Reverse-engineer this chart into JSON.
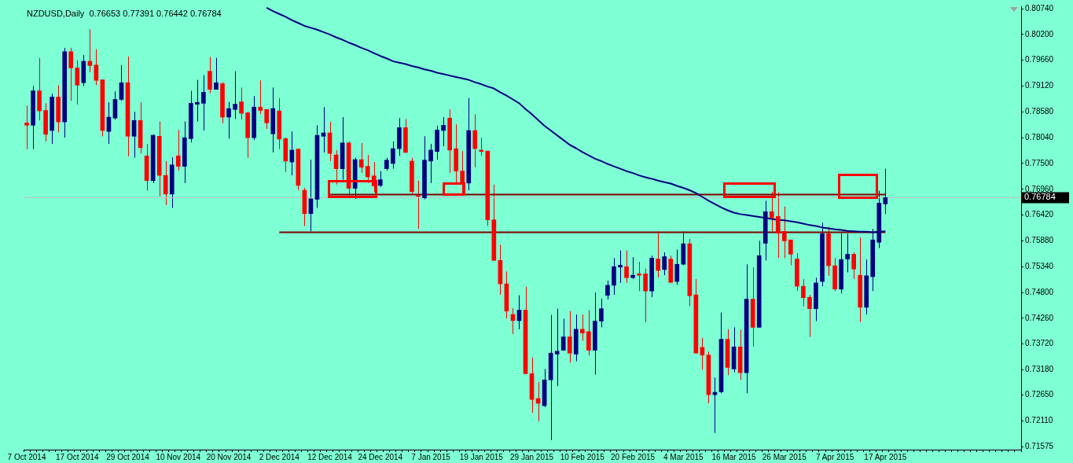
{
  "chart_data": {
    "type": "candlestick",
    "title": "NZDUSD,Daily  0.76653 0.77391 0.76442 0.76784",
    "categories": [
      "7 Oct 2014",
      null,
      null,
      null,
      null,
      null,
      null,
      null,
      "17 Oct 2014",
      null,
      null,
      null,
      null,
      null,
      null,
      null,
      "29 Oct 2014",
      null,
      null,
      null,
      null,
      null,
      null,
      null,
      "10 Nov 2014",
      null,
      null,
      null,
      null,
      null,
      null,
      null,
      "20 Nov 2014",
      null,
      null,
      null,
      null,
      null,
      null,
      null,
      "2 Dec 2014",
      null,
      null,
      null,
      null,
      null,
      null,
      null,
      "12 Dec 2014",
      null,
      null,
      null,
      null,
      null,
      null,
      null,
      "24 Dec 2014",
      null,
      null,
      null,
      null,
      null,
      null,
      null,
      "7 Jan 2015",
      null,
      null,
      null,
      null,
      null,
      null,
      null,
      "19 Jan 2015",
      null,
      null,
      null,
      null,
      null,
      null,
      null,
      "29 Jan 2015",
      null,
      null,
      null,
      null,
      null,
      null,
      null,
      "10 Feb 2015",
      null,
      null,
      null,
      null,
      null,
      null,
      null,
      "20 Feb 2015",
      null,
      null,
      null,
      null,
      null,
      null,
      null,
      "4 Mar 2015",
      null,
      null,
      null,
      null,
      null,
      null,
      null,
      "16 Mar 2015",
      null,
      null,
      null,
      null,
      null,
      null,
      null,
      "26 Mar 2015",
      null,
      null,
      null,
      null,
      null,
      null,
      null,
      "7 Apr 2015",
      null,
      null,
      null,
      null,
      null,
      null,
      null,
      "17 Apr 2015"
    ],
    "ohlc": [
      [
        0.7835,
        0.7871,
        0.778,
        0.783
      ],
      [
        0.783,
        0.7912,
        0.778,
        0.7902
      ],
      [
        0.7902,
        0.7971,
        0.784,
        0.786
      ],
      [
        0.7861,
        0.7876,
        0.7796,
        0.7811
      ],
      [
        0.7819,
        0.7896,
        0.7791,
        0.7889
      ],
      [
        0.7889,
        0.7914,
        0.7815,
        0.7837
      ],
      [
        0.7837,
        0.7992,
        0.7804,
        0.7984
      ],
      [
        0.7984,
        0.7992,
        0.7881,
        0.795
      ],
      [
        0.795,
        0.7966,
        0.7873,
        0.7914
      ],
      [
        0.7919,
        0.7977,
        0.7912,
        0.7964
      ],
      [
        0.7964,
        0.8031,
        0.7941,
        0.7955
      ],
      [
        0.7956,
        0.7989,
        0.7914,
        0.7924
      ],
      [
        0.7925,
        0.7925,
        0.7807,
        0.7819
      ],
      [
        0.7817,
        0.7878,
        0.7791,
        0.7847
      ],
      [
        0.7845,
        0.7901,
        0.7842,
        0.7884
      ],
      [
        0.7884,
        0.7956,
        0.7881,
        0.7919
      ],
      [
        0.7919,
        0.7974,
        0.7765,
        0.7807
      ],
      [
        0.7807,
        0.7858,
        0.7762,
        0.784
      ],
      [
        0.784,
        0.7878,
        0.7771,
        0.7783
      ],
      [
        0.7766,
        0.7791,
        0.7693,
        0.7714
      ],
      [
        0.7714,
        0.7811,
        0.7709,
        0.7809
      ],
      [
        0.7807,
        0.7838,
        0.7681,
        0.7725
      ],
      [
        0.7725,
        0.7755,
        0.7663,
        0.7686
      ],
      [
        0.7686,
        0.7763,
        0.7657,
        0.7747
      ],
      [
        0.7766,
        0.782,
        0.7735,
        0.7744
      ],
      [
        0.7744,
        0.7838,
        0.7709,
        0.7804
      ],
      [
        0.7802,
        0.7902,
        0.7794,
        0.7876
      ],
      [
        0.7874,
        0.7925,
        0.7838,
        0.7878
      ],
      [
        0.7876,
        0.7935,
        0.7819,
        0.7899
      ],
      [
        0.7943,
        0.7973,
        0.7897,
        0.7905
      ],
      [
        0.7905,
        0.7971,
        0.7905,
        0.7919
      ],
      [
        0.7917,
        0.792,
        0.7834,
        0.7847
      ],
      [
        0.7847,
        0.7879,
        0.7802,
        0.7865
      ],
      [
        0.7863,
        0.7943,
        0.7843,
        0.7874
      ],
      [
        0.7879,
        0.7909,
        0.7842,
        0.7855
      ],
      [
        0.7856,
        0.7858,
        0.7762,
        0.7804
      ],
      [
        0.7804,
        0.7891,
        0.7799,
        0.7868
      ],
      [
        0.7868,
        0.7924,
        0.7853,
        0.7861
      ],
      [
        0.7863,
        0.7863,
        0.7822,
        0.7835
      ],
      [
        0.7812,
        0.7909,
        0.7773,
        0.7865
      ],
      [
        0.786,
        0.7887,
        0.778,
        0.7801
      ],
      [
        0.7802,
        0.7804,
        0.7732,
        0.7755
      ],
      [
        0.7753,
        0.7817,
        0.7725,
        0.7778
      ],
      [
        0.778,
        0.7781,
        0.7694,
        0.7704
      ],
      [
        0.7694,
        0.7699,
        0.7619,
        0.7645
      ],
      [
        0.7645,
        0.7758,
        0.7608,
        0.7676
      ],
      [
        0.7675,
        0.783,
        0.7657,
        0.7809
      ],
      [
        0.7807,
        0.7868,
        0.7773,
        0.7814
      ],
      [
        0.7814,
        0.7837,
        0.7755,
        0.7771
      ],
      [
        0.7768,
        0.7778,
        0.7706,
        0.7739
      ],
      [
        0.7739,
        0.7847,
        0.7716,
        0.7793
      ],
      [
        0.7793,
        0.7796,
        0.7681,
        0.7698
      ],
      [
        0.7698,
        0.7762,
        0.7676,
        0.7758
      ],
      [
        0.7758,
        0.7793,
        0.773,
        0.7742
      ],
      [
        0.7744,
        0.7768,
        0.7709,
        0.7722
      ],
      [
        0.7724,
        0.7753,
        0.769,
        0.7703
      ],
      [
        0.7704,
        0.7734,
        0.7701,
        0.7716
      ],
      [
        0.7739,
        0.7762,
        0.7735,
        0.7757
      ],
      [
        0.775,
        0.7796,
        0.7739,
        0.7781
      ],
      [
        0.7781,
        0.7845,
        0.7766,
        0.7825
      ],
      [
        0.7825,
        0.7843,
        0.7773,
        0.7773
      ],
      [
        0.7755,
        0.7762,
        0.7685,
        0.7691
      ],
      [
        0.7683,
        0.7714,
        0.7613,
        0.7681
      ],
      [
        0.7678,
        0.7807,
        0.7675,
        0.7757
      ],
      [
        0.7755,
        0.7791,
        0.7709,
        0.7778
      ],
      [
        0.7775,
        0.7829,
        0.7758,
        0.782
      ],
      [
        0.7819,
        0.7847,
        0.7786,
        0.783
      ],
      [
        0.7845,
        0.7863,
        0.773,
        0.7778
      ],
      [
        0.7781,
        0.7832,
        0.7709,
        0.7734
      ],
      [
        0.7734,
        0.7776,
        0.7685,
        0.7709
      ],
      [
        0.7709,
        0.7887,
        0.7694,
        0.7819
      ],
      [
        0.7819,
        0.7853,
        0.7742,
        0.7781
      ],
      [
        0.7778,
        0.7804,
        0.7766,
        0.7775
      ],
      [
        0.7776,
        0.7776,
        0.7619,
        0.7632
      ],
      [
        0.7632,
        0.7706,
        0.7547,
        0.7547
      ],
      [
        0.7547,
        0.758,
        0.7475,
        0.7498
      ],
      [
        0.7498,
        0.7524,
        0.7426,
        0.7441
      ],
      [
        0.7434,
        0.7447,
        0.7393,
        0.7421
      ],
      [
        0.7421,
        0.7474,
        0.7403,
        0.7443
      ],
      [
        0.7443,
        0.7492,
        0.731,
        0.731
      ],
      [
        0.731,
        0.7344,
        0.7228,
        0.7256
      ],
      [
        0.7258,
        0.7292,
        0.721,
        0.7248
      ],
      [
        0.7243,
        0.732,
        0.724,
        0.7297
      ],
      [
        0.7297,
        0.7433,
        0.7171,
        0.7353
      ],
      [
        0.7351,
        0.7446,
        0.7284,
        0.7357
      ],
      [
        0.7359,
        0.7425,
        0.7359,
        0.7387
      ],
      [
        0.7387,
        0.7441,
        0.7333,
        0.7353
      ],
      [
        0.7351,
        0.7434,
        0.7336,
        0.7403
      ],
      [
        0.7403,
        0.7434,
        0.7379,
        0.7395
      ],
      [
        0.7398,
        0.7443,
        0.7348,
        0.7359
      ],
      [
        0.7359,
        0.748,
        0.7308,
        0.742
      ],
      [
        0.742,
        0.7467,
        0.7407,
        0.7446
      ],
      [
        0.7474,
        0.7505,
        0.7465,
        0.7495
      ],
      [
        0.7495,
        0.7552,
        0.7475,
        0.7534
      ],
      [
        0.7533,
        0.7568,
        0.75,
        0.7537
      ],
      [
        0.7534,
        0.7568,
        0.75,
        0.7511
      ],
      [
        0.7511,
        0.7554,
        0.7508,
        0.7516
      ],
      [
        0.7519,
        0.7544,
        0.7483,
        0.7516
      ],
      [
        0.7519,
        0.753,
        0.7418,
        0.7483
      ],
      [
        0.7483,
        0.7557,
        0.747,
        0.7552
      ],
      [
        0.755,
        0.7608,
        0.7511,
        0.7526
      ],
      [
        0.7528,
        0.7564,
        0.7516,
        0.7555
      ],
      [
        0.755,
        0.7557,
        0.75,
        0.7501
      ],
      [
        0.7503,
        0.757,
        0.7496,
        0.7539
      ],
      [
        0.7539,
        0.7608,
        0.7537,
        0.7582
      ],
      [
        0.7582,
        0.7592,
        0.7451,
        0.7473
      ],
      [
        0.7475,
        0.7508,
        0.7353,
        0.7353
      ],
      [
        0.7365,
        0.7385,
        0.7318,
        0.7349
      ],
      [
        0.7349,
        0.7356,
        0.7248,
        0.7266
      ],
      [
        0.7266,
        0.7302,
        0.7186,
        0.7271
      ],
      [
        0.7272,
        0.7438,
        0.7269,
        0.7382
      ],
      [
        0.7382,
        0.7403,
        0.7307,
        0.7323
      ],
      [
        0.732,
        0.7407,
        0.7313,
        0.7366
      ],
      [
        0.7366,
        0.7402,
        0.7297,
        0.7312
      ],
      [
        0.7312,
        0.7539,
        0.7269,
        0.7466
      ],
      [
        0.7466,
        0.7533,
        0.7367,
        0.7407
      ],
      [
        0.7407,
        0.7588,
        0.7407,
        0.7557
      ],
      [
        0.7583,
        0.7672,
        0.7547,
        0.7649
      ],
      [
        0.7649,
        0.7691,
        0.7608,
        0.7636
      ],
      [
        0.7639,
        0.769,
        0.7552,
        0.7604
      ],
      [
        0.7608,
        0.766,
        0.7552,
        0.7588
      ],
      [
        0.759,
        0.759,
        0.7537,
        0.756
      ],
      [
        0.755,
        0.7562,
        0.7483,
        0.7493
      ],
      [
        0.7493,
        0.7508,
        0.7451,
        0.7469
      ],
      [
        0.747,
        0.7475,
        0.7387,
        0.7446
      ],
      [
        0.7446,
        0.7511,
        0.742,
        0.75
      ],
      [
        0.7503,
        0.7626,
        0.7493,
        0.7603
      ],
      [
        0.7603,
        0.7617,
        0.7515,
        0.7536
      ],
      [
        0.7536,
        0.7552,
        0.7483,
        0.7487
      ],
      [
        0.7487,
        0.7604,
        0.7478,
        0.7549
      ],
      [
        0.755,
        0.7603,
        0.7522,
        0.756
      ],
      [
        0.756,
        0.7564,
        0.7508,
        0.7529
      ],
      [
        0.7516,
        0.7595,
        0.7418,
        0.7449
      ],
      [
        0.7449,
        0.7549,
        0.7434,
        0.7515
      ],
      [
        0.7513,
        0.7613,
        0.7483,
        0.759
      ],
      [
        0.7585,
        0.7693,
        0.7573,
        0.7667
      ],
      [
        0.76653,
        0.77391,
        0.76442,
        0.76784
      ]
    ],
    "colors": [
      "#ff0000",
      "#000080",
      "#ff0000",
      "#ff0000",
      "#000080",
      "#ff0000",
      "#000080",
      "#ff0000",
      "#ff0000",
      "#000080",
      "#ff0000",
      "#ff0000",
      "#ff0000",
      "#000080",
      "#000080",
      "#000080",
      "#ff0000",
      "#000080",
      "#ff0000",
      "#ff0000",
      "#000080",
      "#ff0000",
      "#ff0000",
      "#000080",
      "#ff0000",
      "#000080",
      "#000080",
      "#000080",
      "#000080",
      "#ff0000",
      "#000080",
      "#ff0000",
      "#000080",
      "#000080",
      "#ff0000",
      "#ff0000",
      "#000080",
      "#ff0000",
      "#ff0000",
      "#000080",
      "#ff0000",
      "#ff0000",
      "#000080",
      "#ff0000",
      "#ff0000",
      "#000080",
      "#000080",
      "#000080",
      "#ff0000",
      "#ff0000",
      "#000080",
      "#ff0000",
      "#000080",
      "#ff0000",
      "#ff0000",
      "#ff0000",
      "#000080",
      "#000080",
      "#000080",
      "#000080",
      "#ff0000",
      "#ff0000",
      "#ff0000",
      "#000080",
      "#000080",
      "#000080",
      "#000080",
      "#ff0000",
      "#ff0000",
      "#ff0000",
      "#000080",
      "#ff0000",
      "#ff0000",
      "#ff0000",
      "#ff0000",
      "#ff0000",
      "#ff0000",
      "#ff0000",
      "#000080",
      "#ff0000",
      "#ff0000",
      "#ff0000",
      "#000080",
      "#000080",
      "#000080",
      "#000080",
      "#ff0000",
      "#000080",
      "#ff0000",
      "#ff0000",
      "#000080",
      "#000080",
      "#000080",
      "#000080",
      "#000080",
      "#ff0000",
      "#000080",
      "#ff0000",
      "#ff0000",
      "#000080",
      "#ff0000",
      "#000080",
      "#ff0000",
      "#000080",
      "#000080",
      "#ff0000",
      "#ff0000",
      "#ff0000",
      "#ff0000",
      "#000080",
      "#000080",
      "#ff0000",
      "#000080",
      "#ff0000",
      "#000080",
      "#ff0000",
      "#000080",
      "#000080",
      "#ff0000",
      "#ff0000",
      "#ff0000",
      "#ff0000",
      "#ff0000",
      "#ff0000",
      "#ff0000",
      "#000080",
      "#000080",
      "#ff0000",
      "#ff0000",
      "#000080",
      "#000080",
      "#ff0000",
      "#ff0000",
      "#000080",
      "#000080",
      "#000080",
      "#000080"
    ],
    "series": [
      {
        "type": "line",
        "color": "#000080",
        "values": [
          null,
          null,
          null,
          null,
          null,
          null,
          null,
          null,
          null,
          null,
          null,
          null,
          null,
          null,
          null,
          null,
          null,
          null,
          null,
          null,
          null,
          null,
          null,
          null,
          null,
          null,
          null,
          null,
          null,
          null,
          null,
          null,
          null,
          null,
          null,
          null,
          null,
          null,
          0.8076,
          0.8069,
          0.8063,
          0.8057,
          0.805,
          0.8044,
          0.8038,
          0.8034,
          0.803,
          0.8025,
          0.802,
          0.8014,
          0.8009,
          0.8003,
          0.7998,
          0.7992,
          0.7987,
          0.7981,
          0.7975,
          0.797,
          0.7964,
          0.7961,
          0.7958,
          0.7954,
          0.7951,
          0.7947,
          0.7944,
          0.794,
          0.7937,
          0.7934,
          0.7931,
          0.7928,
          0.7925,
          0.792,
          0.7916,
          0.7911,
          0.7907,
          0.7899,
          0.7892,
          0.7884,
          0.7876,
          0.7864,
          0.7853,
          0.7841,
          0.7829,
          0.7819,
          0.7809,
          0.7799,
          0.7789,
          0.7782,
          0.7774,
          0.7767,
          0.776,
          0.7755,
          0.7749,
          0.7744,
          0.7739,
          0.7734,
          0.773,
          0.7725,
          0.7721,
          0.7718,
          0.7714,
          0.7711,
          0.7708,
          0.7703,
          0.7699,
          0.7694,
          0.7688,
          0.768,
          0.7672,
          0.7665,
          0.7658,
          0.7652,
          0.7647,
          0.7644,
          0.7642,
          0.764,
          0.7638,
          0.7636,
          0.7634,
          0.7632,
          0.7631,
          0.7629,
          0.7627,
          0.7624,
          0.7621,
          0.7619,
          0.7616,
          0.7614,
          0.7612,
          0.7611,
          0.7609,
          0.7608,
          0.7607,
          0.7607,
          0.7606,
          0.7607,
          0.7608
        ]
      },
      {
        "type": "line",
        "color": "#800000",
        "x": [
          "12 Dec 2014",
          "17 Apr 2015"
        ],
        "values": [
          0.7685,
          0.7685
        ]
      },
      {
        "type": "line",
        "color": "#800000",
        "x": [
          "2 Dec 2014",
          "17 Apr 2015"
        ],
        "values": [
          0.7606,
          0.7606
        ]
      }
    ],
    "ylim": [
      0.7151,
      0.8079
    ],
    "yticks": [
      {
        "value": 0.8074,
        "label": "0.80740"
      },
      {
        "value": 0.802,
        "label": "0.80200"
      },
      {
        "value": 0.7966,
        "label": "0.79660"
      },
      {
        "value": 0.7912,
        "label": "0.79120"
      },
      {
        "value": 0.7858,
        "label": "0.78580"
      },
      {
        "value": 0.7804,
        "label": "0.78040"
      },
      {
        "value": 0.775,
        "label": "0.77500"
      },
      {
        "value": 0.7696,
        "label": "0.76960"
      },
      {
        "value": 0.7642,
        "label": "0.76420"
      },
      {
        "value": 0.7588,
        "label": "0.75880"
      },
      {
        "value": 0.7534,
        "label": "0.75340"
      },
      {
        "value": 0.748,
        "label": "0.74800"
      },
      {
        "value": 0.7426,
        "label": "0.74260"
      },
      {
        "value": 0.7372,
        "label": "0.73720"
      },
      {
        "value": 0.7318,
        "label": "0.73180"
      },
      {
        "value": 0.7265,
        "label": "0.72650"
      },
      {
        "value": 0.7211,
        "label": "0.72110"
      },
      {
        "value": 0.71575,
        "label": "0.71575"
      }
    ],
    "ref_lines": [
      {
        "axis": "y",
        "value": 0.76784,
        "label": "0.76784",
        "color": "#c0c0c0"
      }
    ],
    "marker": "none",
    "legend": false,
    "grid": false
  }
}
